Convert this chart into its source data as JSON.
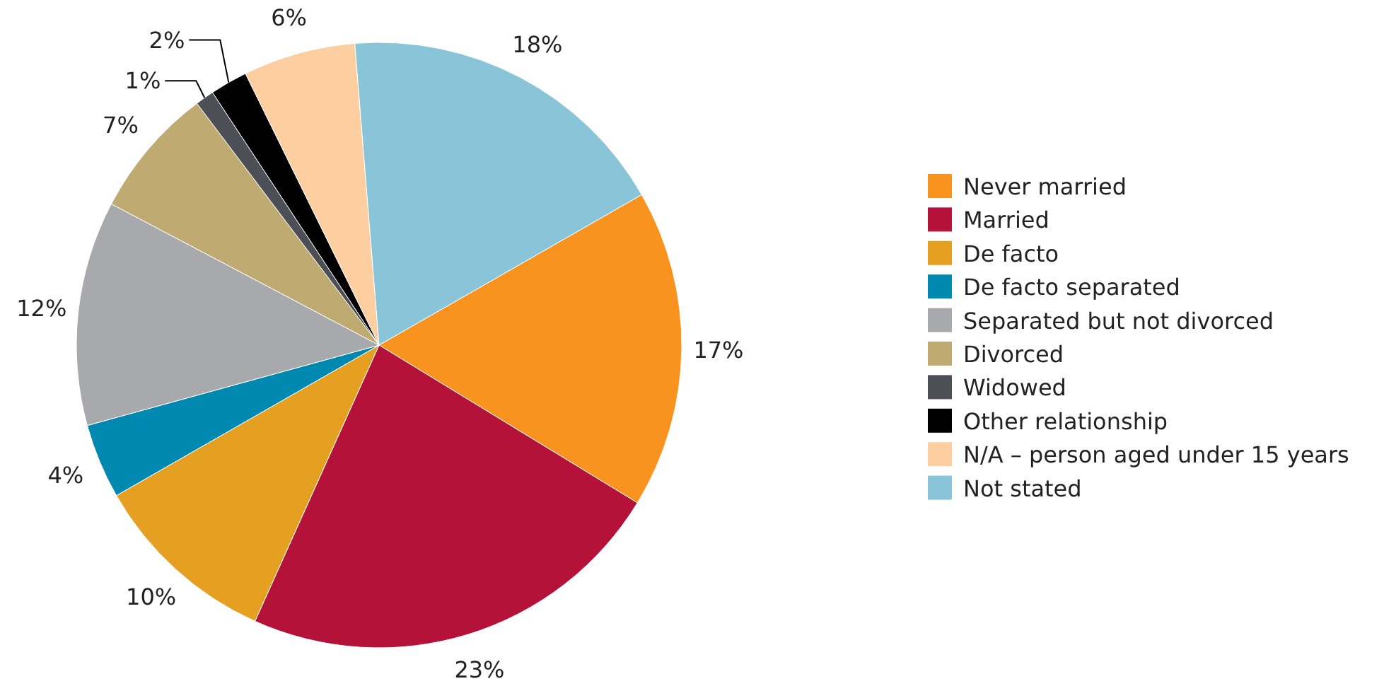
{
  "chart_data": {
    "type": "pie",
    "categories": [
      "Never married",
      "Married",
      "De facto",
      "De facto separated",
      "Separated but not divorced",
      "Divorced",
      "Widowed",
      "Other relationship",
      "N/A – person aged under 15 years",
      "Not stated"
    ],
    "values": [
      17,
      23,
      10,
      4,
      12,
      7,
      1,
      2,
      6,
      18
    ],
    "value_labels": [
      "17%",
      "23%",
      "10%",
      "4%",
      "12%",
      "7%",
      "1%",
      "2%",
      "6%",
      "18%"
    ],
    "colors": [
      "#f7931e",
      "#b5123a",
      "#e5a021",
      "#0089b0",
      "#a7a9ac",
      "#bfab72",
      "#4d4f56",
      "#000000",
      "#fdcfa0",
      "#8ac4d8"
    ],
    "legend": "right"
  }
}
